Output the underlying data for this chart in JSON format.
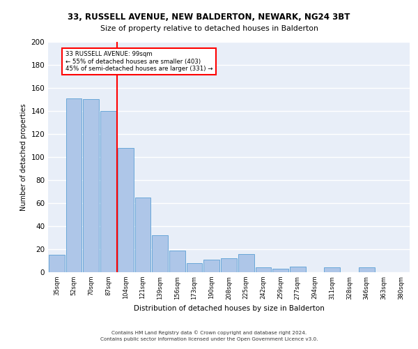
{
  "title1": "33, RUSSELL AVENUE, NEW BALDERTON, NEWARK, NG24 3BT",
  "title2": "Size of property relative to detached houses in Balderton",
  "xlabel": "Distribution of detached houses by size in Balderton",
  "ylabel": "Number of detached properties",
  "bar_labels": [
    "35sqm",
    "52sqm",
    "70sqm",
    "87sqm",
    "104sqm",
    "121sqm",
    "139sqm",
    "156sqm",
    "173sqm",
    "190sqm",
    "208sqm",
    "225sqm",
    "242sqm",
    "259sqm",
    "277sqm",
    "294sqm",
    "311sqm",
    "328sqm",
    "346sqm",
    "363sqm",
    "380sqm"
  ],
  "bar_values": [
    15,
    151,
    150,
    140,
    108,
    65,
    32,
    19,
    8,
    11,
    12,
    16,
    4,
    3,
    5,
    0,
    4,
    0,
    4,
    0,
    0
  ],
  "bar_color": "#aec6e8",
  "bar_edgecolor": "#5a9fd4",
  "vline_x_index": 4,
  "vline_color": "red",
  "annotation_line1": "33 RUSSELL AVENUE: 99sqm",
  "annotation_line2": "← 55% of detached houses are smaller (403)",
  "annotation_line3": "45% of semi-detached houses are larger (331) →",
  "annotation_box_color": "white",
  "annotation_box_edgecolor": "red",
  "ylim": [
    0,
    200
  ],
  "yticks": [
    0,
    20,
    40,
    60,
    80,
    100,
    120,
    140,
    160,
    180,
    200
  ],
  "background_color": "#e8eef8",
  "grid_color": "white",
  "footer1": "Contains HM Land Registry data © Crown copyright and database right 2024.",
  "footer2": "Contains public sector information licensed under the Open Government Licence v3.0."
}
